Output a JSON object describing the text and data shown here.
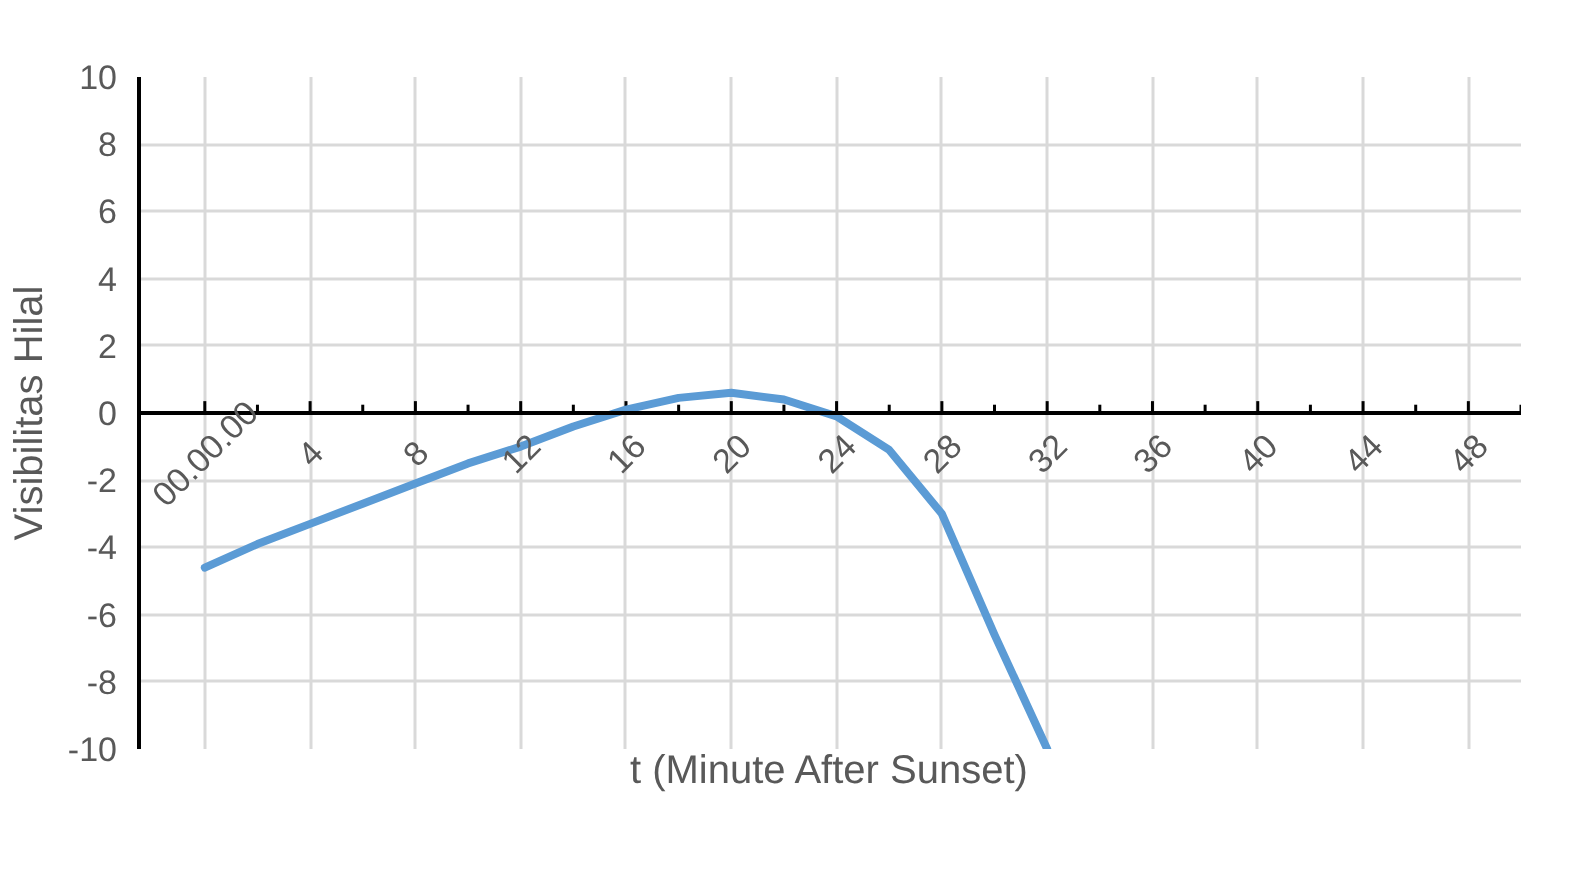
{
  "chart_data": {
    "type": "line",
    "xlabel": "t (Minute After Sunset)",
    "ylabel": "Visibilitas Hilal",
    "x": [
      0,
      2,
      4,
      6,
      8,
      10,
      12,
      14,
      16,
      18,
      20,
      22,
      24,
      26,
      28,
      30,
      32
    ],
    "series": [
      {
        "color": "#5b9bd5",
        "values": [
          -4.6,
          -3.9,
          -3.3,
          -2.7,
          -2.1,
          -1.5,
          -1.0,
          -0.4,
          0.1,
          0.45,
          0.6,
          0.4,
          -0.1,
          -1.1,
          -3.0,
          -6.6,
          -10
        ]
      }
    ],
    "xlim": [
      -2.5,
      50
    ],
    "ylim": [
      -10,
      10
    ],
    "xticks": [
      {
        "value": 0,
        "label": "00.00.00"
      },
      4,
      8,
      12,
      16,
      20,
      24,
      28,
      32,
      36,
      40,
      44,
      48
    ],
    "yticks": [
      -10,
      -8,
      -6,
      -4,
      -2,
      0,
      2,
      4,
      6,
      8,
      10
    ],
    "grid": true,
    "marker": "none",
    "line_style": "solid"
  }
}
